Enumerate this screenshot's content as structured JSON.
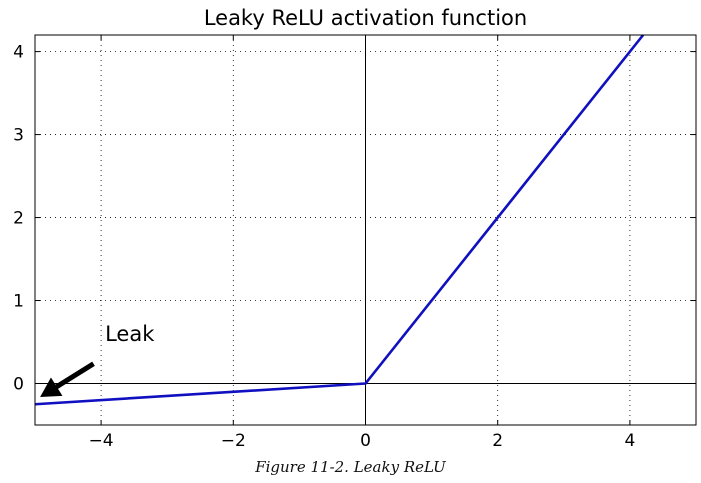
{
  "chart_data": {
    "type": "line",
    "title": "Leaky ReLU activation function",
    "xlabel": "",
    "ylabel": "",
    "xlim": [
      -5,
      5
    ],
    "ylim": [
      -0.5,
      4.2
    ],
    "x_ticks": [
      -4,
      -2,
      0,
      2,
      4
    ],
    "x_tick_labels": [
      "−4",
      "−2",
      "0",
      "2",
      "4"
    ],
    "y_ticks": [
      0,
      1,
      2,
      3,
      4
    ],
    "y_tick_labels": [
      "0",
      "1",
      "2",
      "3",
      "4"
    ],
    "grid": true,
    "series": [
      {
        "x": [
          -5,
          0,
          4.2
        ],
        "y": [
          -0.25,
          0,
          4.2
        ],
        "color": "#1010c0"
      }
    ],
    "annotations": [
      {
        "text": "Leak",
        "xy": [
          -5,
          -0.12
        ],
        "text_xy": [
          -4,
          0.5
        ]
      }
    ]
  },
  "caption": "Figure 11-2. Leaky ReLU"
}
